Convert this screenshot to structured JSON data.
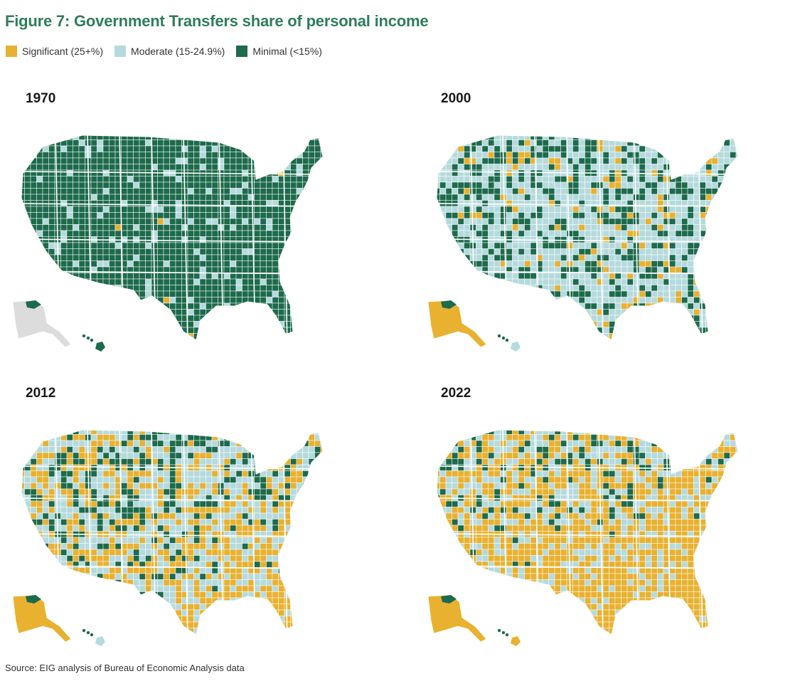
{
  "title": "Figure 7: Government Transfers share of personal income",
  "legend": [
    {
      "label": "Significant (25+%)",
      "color": "#e8b130"
    },
    {
      "label": "Moderate (15-24.9%)",
      "color": "#b5dadd"
    },
    {
      "label": "Minimal (<15%)",
      "color": "#1d6a4c"
    }
  ],
  "colors": {
    "significant": "#e8b130",
    "moderate": "#b5dadd",
    "minimal": "#1d6a4c",
    "nodata": "#dcdcdc"
  },
  "maps": [
    {
      "year": "1970",
      "share": {
        "significant": 0.01,
        "moderate": 0.12,
        "minimal": 0.87
      },
      "alaska_nodata": true
    },
    {
      "year": "2000",
      "share": {
        "significant": 0.1,
        "moderate": 0.58,
        "minimal": 0.32
      },
      "alaska_nodata": false
    },
    {
      "year": "2012",
      "share": {
        "significant": 0.4,
        "moderate": 0.42,
        "minimal": 0.18
      },
      "alaska_nodata": false
    },
    {
      "year": "2022",
      "share": {
        "significant": 0.6,
        "moderate": 0.33,
        "minimal": 0.07
      },
      "alaska_nodata": false
    }
  ],
  "source": "Source: EIG analysis of Bureau of Economic Analysis data"
}
